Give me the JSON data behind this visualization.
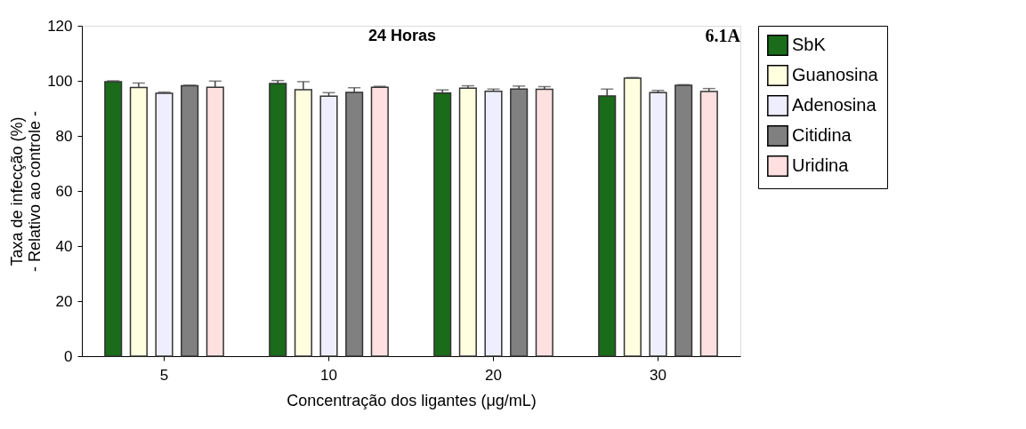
{
  "chart_data": {
    "type": "bar",
    "title": "24 Horas",
    "xlabel": "Concentração dos ligantes (μg/mL)",
    "ylabel": "Taxa de infecção (%)\n- Relativo ao controle -",
    "categories": [
      "5",
      "10",
      "20",
      "30"
    ],
    "series": [
      {
        "name": "SbK",
        "color": "#1a6b1a",
        "values": [
          99.7,
          99.0,
          95.6,
          94.5
        ],
        "errors": [
          [
            99.7,
            100.0
          ],
          [
            99.0,
            100.1
          ],
          [
            95.6,
            96.7
          ],
          [
            94.5,
            97.0
          ]
        ]
      },
      {
        "name": "Guanosina",
        "color": "#ffffe0",
        "values": [
          97.6,
          96.8,
          97.3,
          101.0
        ],
        "errors": [
          [
            97.6,
            99.2
          ],
          [
            96.8,
            99.7
          ],
          [
            97.3,
            98.2
          ],
          [
            101.0,
            101.2
          ]
        ]
      },
      {
        "name": "Adenosina",
        "color": "#eeeeff",
        "values": [
          95.5,
          94.4,
          96.2,
          95.7
        ],
        "errors": [
          [
            95.5,
            95.9
          ],
          [
            94.4,
            95.7
          ],
          [
            96.2,
            97.0
          ],
          [
            95.7,
            96.5
          ]
        ]
      },
      {
        "name": "Citidina",
        "color": "#808080",
        "values": [
          98.2,
          95.8,
          97.0,
          98.4
        ],
        "errors": [
          [
            98.2,
            98.4
          ],
          [
            95.8,
            97.5
          ],
          [
            97.0,
            98.1
          ],
          [
            98.4,
            98.6
          ]
        ]
      },
      {
        "name": "Uridina",
        "color": "#ffe0e0",
        "values": [
          97.7,
          97.7,
          96.9,
          96.1
        ],
        "errors": [
          [
            97.7,
            99.9
          ],
          [
            97.7,
            98.0
          ],
          [
            96.9,
            97.9
          ],
          [
            96.1,
            97.2
          ]
        ]
      }
    ],
    "annotations": [
      "6.1A"
    ],
    "ylim": [
      0,
      120
    ],
    "yticks": [
      0,
      20,
      40,
      60,
      80,
      100,
      120
    ],
    "grid": false,
    "legend": "right"
  }
}
